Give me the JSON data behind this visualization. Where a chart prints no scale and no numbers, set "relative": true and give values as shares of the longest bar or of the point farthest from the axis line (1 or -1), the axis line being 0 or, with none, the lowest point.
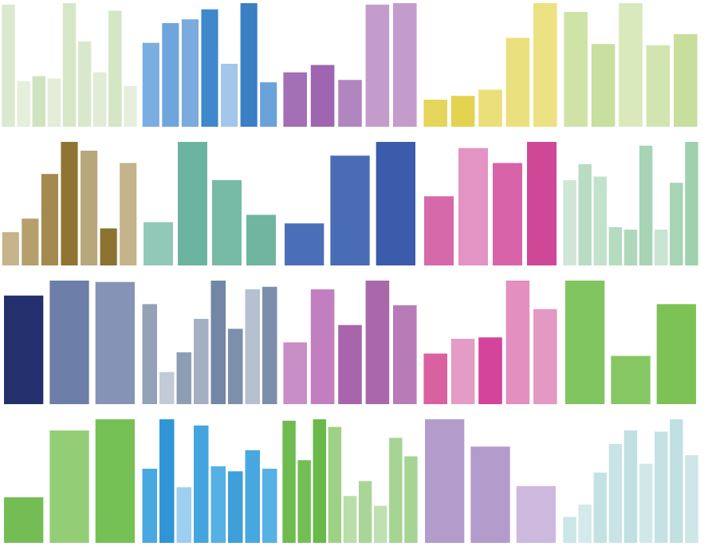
{
  "chart_data": [
    {
      "type": "bar",
      "relative": true,
      "categories": [
        null,
        null,
        null,
        null,
        null,
        null,
        null,
        null,
        null
      ],
      "values": [
        0.99,
        0.37,
        0.41,
        0.39,
        1,
        0.69,
        0.44,
        0.94,
        0.33
      ],
      "colors": [
        "#dbe9cf",
        "#e6efdc",
        "#cfe3c0",
        "#e2eed8",
        "#d6e7c8",
        "#d9e8cc",
        "#e0ecd6",
        "#d4e6c5",
        "#e6efdc"
      ]
    },
    {
      "type": "bar",
      "relative": true,
      "categories": [
        null,
        null,
        null,
        null,
        null,
        null,
        null
      ],
      "values": [
        0.68,
        0.84,
        0.87,
        0.95,
        0.51,
        1,
        0.36
      ],
      "colors": [
        "#7aaee0",
        "#6fa5dc",
        "#7aaade",
        "#3f88cc",
        "#a2c7ea",
        "#3a7ec4",
        "#6aa2da"
      ]
    },
    {
      "type": "bar",
      "relative": true,
      "categories": [
        null,
        null,
        null,
        null,
        null
      ],
      "values": [
        0.44,
        0.5,
        0.38,
        0.99,
        1
      ],
      "colors": [
        "#a36fb5",
        "#9e66b0",
        "#b186c0",
        "#c39ccc",
        "#c39ccc"
      ]
    },
    {
      "type": "bar",
      "relative": true,
      "categories": [
        null,
        null,
        null,
        null,
        null
      ],
      "values": [
        0.22,
        0.25,
        0.3,
        0.72,
        1
      ],
      "colors": [
        "#e5d55a",
        "#e3d34e",
        "#ebdf7a",
        "#ebe07e",
        "#ece183"
      ]
    },
    {
      "type": "bar",
      "relative": true,
      "categories": [
        null,
        null,
        null,
        null,
        null
      ],
      "values": [
        0.93,
        0.67,
        1,
        0.66,
        0.75
      ],
      "colors": [
        "#cfe3a7",
        "#c8dfa0",
        "#d9e9bb",
        "#d2e5b0",
        "#c7de9c"
      ]
    },
    {
      "type": "bar",
      "relative": true,
      "categories": [
        null,
        null,
        null,
        null,
        null,
        null,
        null
      ],
      "values": [
        0.27,
        0.38,
        0.74,
        1,
        0.93,
        0.3,
        0.83
      ],
      "colors": [
        "#c6b48c",
        "#b5a06d",
        "#a38a4e",
        "#8f7432",
        "#b9a77c",
        "#8c7230",
        "#c4b38b"
      ]
    },
    {
      "type": "bar",
      "relative": true,
      "categories": [
        null,
        null,
        null,
        null
      ],
      "values": [
        0.35,
        1,
        0.69,
        0.41
      ],
      "colors": [
        "#91c9b8",
        "#6bb5a0",
        "#77bba6",
        "#6fb59f"
      ]
    },
    {
      "type": "bar",
      "relative": true,
      "categories": [
        null,
        null,
        null
      ],
      "values": [
        0.34,
        0.89,
        1
      ],
      "colors": [
        "#4a6fb8",
        "#4a6cb5",
        "#3a5cab"
      ]
    },
    {
      "type": "bar",
      "relative": true,
      "categories": [
        null,
        null,
        null,
        null
      ],
      "values": [
        0.56,
        0.95,
        0.83,
        1
      ],
      "colors": [
        "#d669a9",
        "#e393c4",
        "#d863a9",
        "#cf4797"
      ]
    },
    {
      "type": "bar",
      "relative": true,
      "categories": [
        null,
        null,
        null,
        null,
        null,
        null,
        null,
        null,
        null
      ],
      "values": [
        0.69,
        0.82,
        0.72,
        0.31,
        0.29,
        0.97,
        0.29,
        0.67,
        1
      ],
      "colors": [
        "#cfe6d7",
        "#b8dcc4",
        "#c2e2cc",
        "#b5dbc1",
        "#aed7bb",
        "#a6d4b5",
        "#c7e5d0",
        "#a6d4b5",
        "#9fd1ae"
      ]
    },
    {
      "type": "bar",
      "relative": true,
      "categories": [
        null,
        null,
        null
      ],
      "values": [
        0.88,
        1,
        0.99
      ],
      "colors": [
        "#24306e",
        "#6d7fa8",
        "#8593b6"
      ]
    },
    {
      "type": "bar",
      "relative": true,
      "categories": [
        null,
        null,
        null,
        null,
        null,
        null,
        null,
        null
      ],
      "values": [
        0.81,
        0.26,
        0.42,
        0.69,
        1,
        0.61,
        0.93,
        0.95
      ],
      "colors": [
        "#93a2b6",
        "#c2cad8",
        "#8d9db3",
        "#a3b0c4",
        "#7287a5",
        "#7c8fab",
        "#b6c0d0",
        "#7b8eac"
      ]
    },
    {
      "type": "bar",
      "relative": true,
      "categories": [
        null,
        null,
        null,
        null,
        null
      ],
      "values": [
        0.5,
        0.93,
        0.64,
        1,
        0.8
      ],
      "colors": [
        "#c88ec6",
        "#c27fbf",
        "#a965ac",
        "#a968aa",
        "#b87bb8"
      ]
    },
    {
      "type": "bar",
      "relative": true,
      "categories": [
        null,
        null,
        null,
        null,
        null
      ],
      "values": [
        0.41,
        0.53,
        0.54,
        1,
        0.77
      ],
      "colors": [
        "#d9619f",
        "#e49cc6",
        "#d4449a",
        "#e38fbf",
        "#e399c4"
      ]
    },
    {
      "type": "bar",
      "relative": true,
      "categories": [
        null,
        null,
        null
      ],
      "values": [
        1,
        0.39,
        0.81
      ],
      "colors": [
        "#80c55f",
        "#86c763",
        "#7dc254"
      ]
    },
    {
      "type": "bar",
      "relative": true,
      "categories": [
        null,
        null,
        null
      ],
      "values": [
        0.37,
        0.91,
        1
      ],
      "colors": [
        "#74bd55",
        "#93ce77",
        "#76c155"
      ]
    },
    {
      "type": "bar",
      "relative": true,
      "categories": [
        null,
        null,
        null,
        null,
        null,
        null,
        null,
        null
      ],
      "values": [
        0.6,
        1,
        0.45,
        0.95,
        0.62,
        0.58,
        0.75,
        0.6
      ],
      "colors": [
        "#49a8df",
        "#2f95d6",
        "#9ccff0",
        "#44a4dd",
        "#55b0e3",
        "#3f9fd9",
        "#47a8df",
        "#57b1e4"
      ]
    },
    {
      "type": "bar",
      "relative": true,
      "categories": [
        null,
        null,
        null,
        null,
        null,
        null,
        null,
        null,
        null
      ],
      "values": [
        0.99,
        0.67,
        1,
        0.94,
        0.38,
        0.5,
        0.3,
        0.85,
        0.7
      ],
      "colors": [
        "#6ebc4f",
        "#74bf55",
        "#6ab94b",
        "#9ed186",
        "#b9deaa",
        "#a9d696",
        "#bfe0b1",
        "#a6d493",
        "#a6d493"
      ]
    },
    {
      "type": "bar",
      "relative": true,
      "categories": [
        null,
        null,
        null
      ],
      "values": [
        1,
        0.78,
        0.46
      ],
      "colors": [
        "#b39bcc",
        "#b39bcc",
        "#cdb9de"
      ]
    },
    {
      "type": "bar",
      "relative": true,
      "categories": [
        null,
        null,
        null,
        null,
        null,
        null,
        null,
        null,
        null
      ],
      "values": [
        0.21,
        0.31,
        0.57,
        0.8,
        0.91,
        0.64,
        0.9,
        1,
        0.71
      ],
      "colors": [
        "#cbe6e6",
        "#d4eaea",
        "#c4e2e3",
        "#c8e4e5",
        "#c0e0e1",
        "#d0e8e8",
        "#c4e2e3",
        "#c0e0e1",
        "#cde6e7"
      ]
    }
  ]
}
